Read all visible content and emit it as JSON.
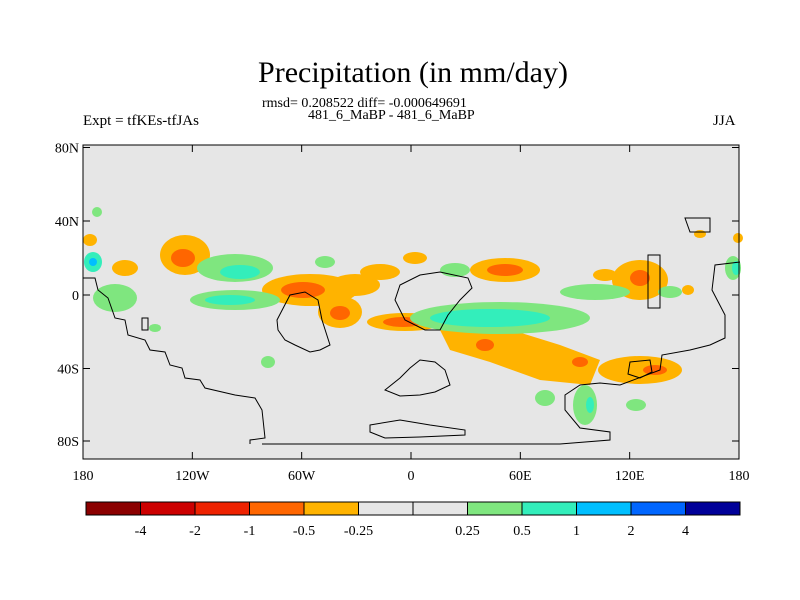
{
  "title": "Precipitation (in mm/day)",
  "stats_text": "rmsd= 0.208522 diff= -0.000649691",
  "cases_text": "481_6_MaBP - 481_6_MaBP",
  "left_label": "Expt = tfKEs-tfJAs",
  "right_label": "JJA",
  "map": {
    "projection": "cylindrical equidistant",
    "background_color": "#e6e6e6",
    "lat_ticks": [
      "80N",
      "40N",
      "0",
      "40S",
      "80S"
    ],
    "lon_ticks": [
      "180",
      "120W",
      "60W",
      "0",
      "60E",
      "120E",
      "180"
    ]
  },
  "colorbar": {
    "colors": [
      "#8b0000",
      "#cc0000",
      "#ee2200",
      "#ff6600",
      "#ffb300",
      "#e6e6e6",
      "#e6e6e6",
      "#7fe67f",
      "#33eebb",
      "#00bfff",
      "#0066ff",
      "#000099"
    ],
    "labels": [
      "-4",
      "-2",
      "-1",
      "-0.5",
      "-0.25",
      "0.25",
      "0.5",
      "1",
      "2",
      "4"
    ]
  }
}
